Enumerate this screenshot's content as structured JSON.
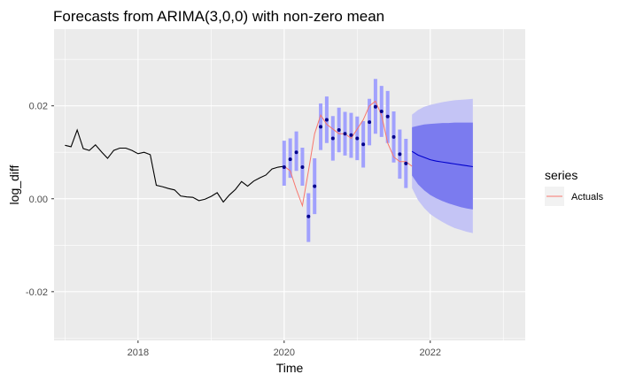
{
  "chart_data": {
    "type": "line",
    "title": "Forecasts from ARIMA(3,0,0) with non-zero mean",
    "xlabel": "Time",
    "ylabel": "log_diff",
    "xlim": [
      2016.85,
      2023.3
    ],
    "ylim": [
      -0.0305,
      0.0365
    ],
    "x_ticks": [
      2018,
      2020,
      2022
    ],
    "x_tick_labels": [
      "2018",
      "2020",
      "2022"
    ],
    "y_ticks": [
      -0.02,
      0.0,
      0.02
    ],
    "y_tick_labels": [
      "-0.02",
      "0.00",
      "0.02"
    ],
    "grid": true,
    "legend": {
      "title": "series",
      "position": "right",
      "entries": [
        "Actuals"
      ]
    },
    "colors": {
      "panel": "#ebebeb",
      "grid": "#ffffff",
      "history": "#000000",
      "actuals": "#f8766d",
      "fitted": "#00008b",
      "fitted_band": "#9999ff",
      "forecast": "#0000cc",
      "band80": "#7b7bef",
      "band95": "#c4c4f5"
    },
    "history": {
      "x": [
        2017.0,
        2017.083,
        2017.167,
        2017.25,
        2017.333,
        2017.417,
        2017.5,
        2017.583,
        2017.667,
        2017.75,
        2017.833,
        2017.917,
        2018.0,
        2018.083,
        2018.167,
        2018.25,
        2018.333,
        2018.417,
        2018.5,
        2018.583,
        2018.667,
        2018.75,
        2018.833,
        2018.917,
        2019.0,
        2019.083,
        2019.167,
        2019.25,
        2019.333,
        2019.417,
        2019.5,
        2019.583,
        2019.667,
        2019.75,
        2019.833,
        2019.917,
        2020.0
      ],
      "y": [
        0.0115,
        0.0112,
        0.0148,
        0.0108,
        0.0104,
        0.0116,
        0.0101,
        0.0087,
        0.0104,
        0.0109,
        0.0109,
        0.0104,
        0.0097,
        0.01,
        0.0095,
        0.0029,
        0.0026,
        0.0022,
        0.0019,
        0.0006,
        0.0004,
        0.0003,
        -0.0004,
        -0.0001,
        0.0005,
        0.0013,
        -0.0007,
        0.0008,
        0.002,
        0.0037,
        0.0027,
        0.0038,
        0.0045,
        0.0051,
        0.0064,
        0.0068,
        0.007
      ]
    },
    "actuals": {
      "x": [
        2020.0,
        2020.083,
        2020.167,
        2020.25,
        2020.333,
        2020.417,
        2020.5,
        2020.583,
        2020.667,
        2020.75,
        2020.833,
        2020.917,
        2021.0,
        2021.083,
        2021.167,
        2021.25,
        2021.333,
        2021.417,
        2021.5,
        2021.583,
        2021.667,
        2021.75
      ],
      "y": [
        0.007,
        0.006,
        0.002,
        -0.0015,
        0.006,
        0.014,
        0.018,
        0.016,
        0.015,
        0.014,
        0.014,
        0.013,
        0.015,
        0.017,
        0.02,
        0.021,
        0.018,
        0.012,
        0.009,
        0.008,
        0.008,
        0.007
      ]
    },
    "fitted": {
      "x": [
        2020.0,
        2020.083,
        2020.167,
        2020.25,
        2020.333,
        2020.417,
        2020.5,
        2020.583,
        2020.667,
        2020.75,
        2020.833,
        2020.917,
        2021.0,
        2021.083,
        2021.167,
        2021.25,
        2021.333,
        2021.417,
        2021.5,
        2021.583,
        2021.667
      ],
      "y": [
        0.0068,
        0.0085,
        0.01,
        0.0068,
        -0.0038,
        0.0027,
        0.0155,
        0.017,
        0.013,
        0.0148,
        0.014,
        0.0137,
        0.013,
        0.0117,
        0.0165,
        0.0198,
        0.0188,
        0.0177,
        0.0133,
        0.0096,
        0.0076
      ],
      "lower": [
        0.0028,
        0.0045,
        0.006,
        0.0028,
        -0.0093,
        -0.0033,
        0.0105,
        0.012,
        0.0082,
        0.01,
        0.0093,
        0.0088,
        0.0083,
        0.0067,
        0.0115,
        0.014,
        0.0133,
        0.012,
        0.0078,
        0.0043,
        0.0023
      ],
      "upper": [
        0.0125,
        0.013,
        0.0145,
        0.011,
        0.0012,
        0.0087,
        0.0205,
        0.022,
        0.0178,
        0.0196,
        0.0187,
        0.0185,
        0.0177,
        0.0167,
        0.0215,
        0.0258,
        0.0243,
        0.0232,
        0.0188,
        0.0149,
        0.0129
      ]
    },
    "forecast": {
      "x": [
        2021.75,
        2021.833,
        2021.917,
        2022.0,
        2022.083,
        2022.167,
        2022.25,
        2022.333,
        2022.417,
        2022.5,
        2022.583
      ],
      "mean": [
        0.0102,
        0.0094,
        0.0089,
        0.0084,
        0.0081,
        0.0079,
        0.0077,
        0.0075,
        0.0073,
        0.0071,
        0.0069
      ],
      "lo80": [
        0.005,
        0.0031,
        0.0018,
        0.0008,
        0.0001,
        -0.0005,
        -0.001,
        -0.0014,
        -0.0018,
        -0.0021,
        -0.0023
      ],
      "hi80": [
        0.0154,
        0.0157,
        0.016,
        0.0161,
        0.0162,
        0.0163,
        0.0163,
        0.0164,
        0.0164,
        0.0164,
        0.0164
      ],
      "lo95": [
        0.0023,
        -0.0003,
        -0.002,
        -0.0033,
        -0.0042,
        -0.005,
        -0.0057,
        -0.0063,
        -0.0067,
        -0.0071,
        -0.0074
      ],
      "hi95": [
        0.0181,
        0.0191,
        0.0198,
        0.0202,
        0.0205,
        0.0208,
        0.021,
        0.0212,
        0.0213,
        0.0214,
        0.0215
      ]
    }
  }
}
